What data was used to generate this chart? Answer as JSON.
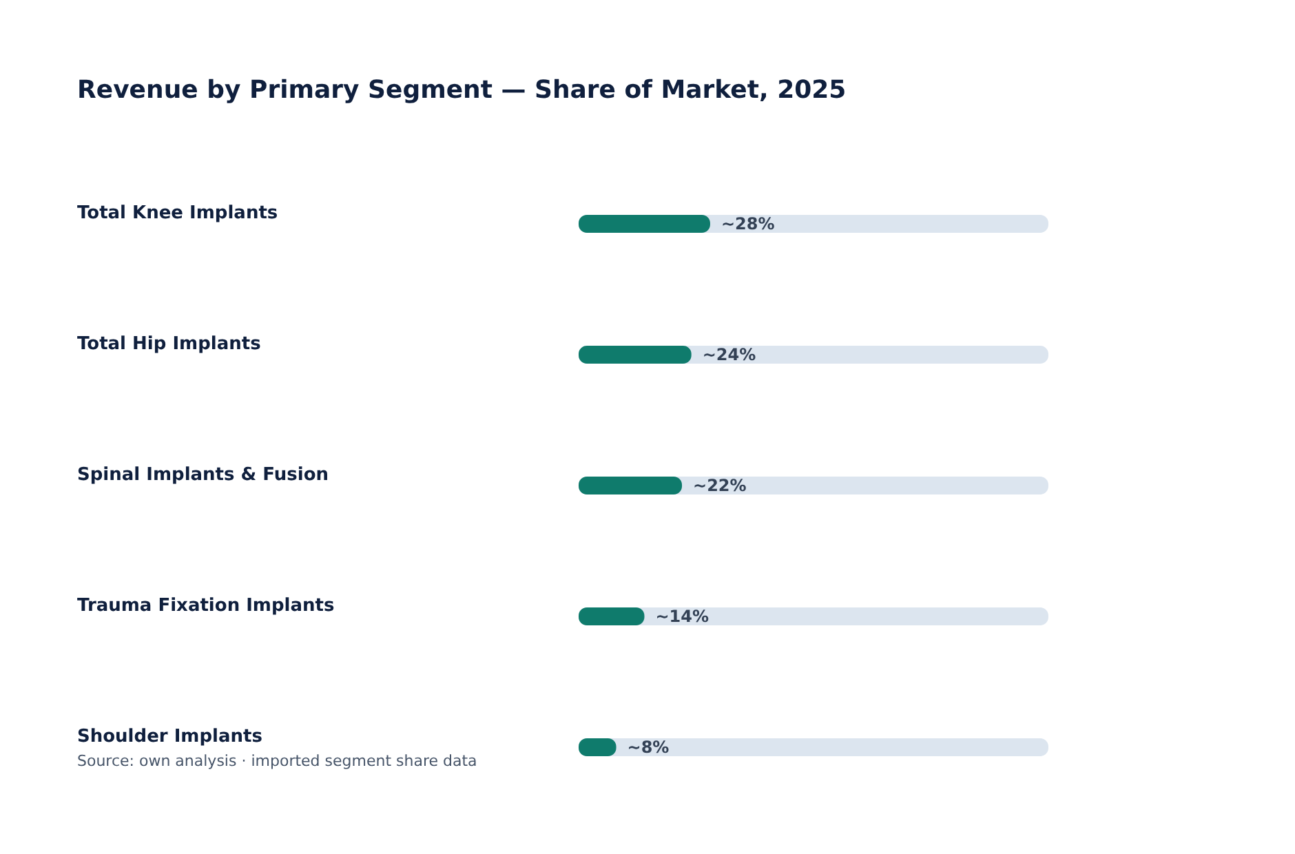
{
  "chart_data": {
    "type": "bar",
    "orientation": "horizontal",
    "title": "Revenue by Primary Segment — Share of Market, 2025",
    "categories": [
      "Total Knee Implants",
      "Total Hip Implants",
      "Spinal Implants & Fusion",
      "Trauma Fixation Implants",
      "Shoulder Implants"
    ],
    "values": [
      28,
      24,
      22,
      14,
      8
    ],
    "value_labels": [
      "~28%",
      "~24%",
      "~22%",
      "~14%",
      "~8%"
    ],
    "color": "#0f7b6c",
    "xlim": [
      0,
      100
    ],
    "annotations": [
      "Source: own analysis · imported segment share data"
    ]
  }
}
